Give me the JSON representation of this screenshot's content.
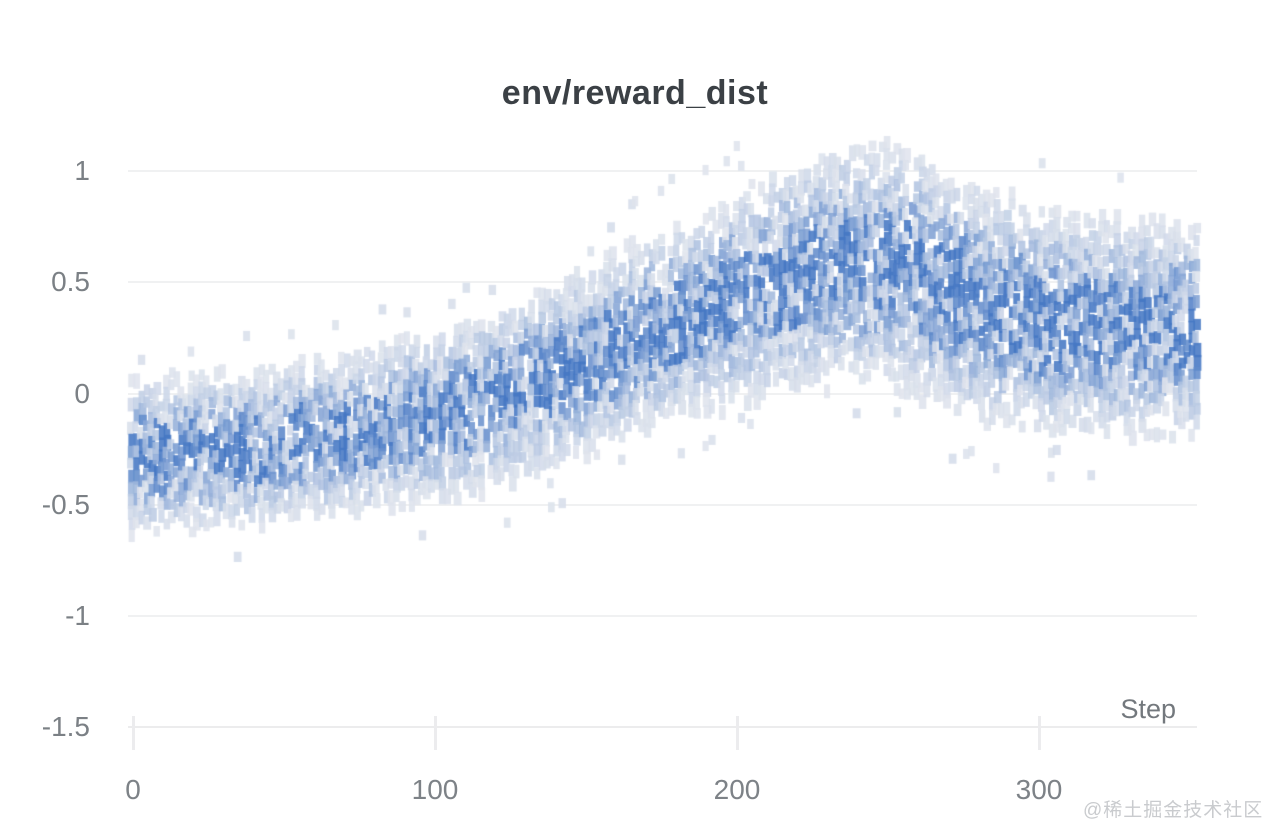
{
  "page": {
    "background": "#ffffff"
  },
  "chart": {
    "title": "env/reward_dist",
    "xlabel": "Step",
    "watermark": "@稀土掘金技术社区"
  },
  "chart_data": {
    "type": "heatmap",
    "title": "env/reward_dist",
    "xlabel": "Step",
    "ylabel": "",
    "x_ticks": [
      0,
      100,
      200,
      300
    ],
    "y_ticks": [
      1,
      0.5,
      0,
      -0.5,
      -1,
      -1.5
    ],
    "xlim": [
      0,
      355
    ],
    "ylim": [
      -1.5,
      1.17
    ],
    "grid": true,
    "legend": "none",
    "colors": {
      "low": "#e9ebf0",
      "high": "#4678c4",
      "grid": "#f0f1f2",
      "label": "#7d8287",
      "title": "#3b4045"
    },
    "value_clip": {
      "min": -0.85,
      "max": 1.17
    },
    "distribution_profile": [
      {
        "step": 0,
        "mean": -0.28,
        "std": 0.16
      },
      {
        "step": 40,
        "mean": -0.24,
        "std": 0.16
      },
      {
        "step": 80,
        "mean": -0.16,
        "std": 0.17
      },
      {
        "step": 110,
        "mean": -0.07,
        "std": 0.18
      },
      {
        "step": 140,
        "mean": 0.08,
        "std": 0.19
      },
      {
        "step": 170,
        "mean": 0.27,
        "std": 0.2
      },
      {
        "step": 195,
        "mean": 0.4,
        "std": 0.21
      },
      {
        "step": 215,
        "mean": 0.5,
        "std": 0.23
      },
      {
        "step": 235,
        "mean": 0.59,
        "std": 0.24
      },
      {
        "step": 255,
        "mean": 0.56,
        "std": 0.25
      },
      {
        "step": 275,
        "mean": 0.44,
        "std": 0.25
      },
      {
        "step": 300,
        "mean": 0.33,
        "std": 0.23
      },
      {
        "step": 330,
        "mean": 0.3,
        "std": 0.22
      },
      {
        "step": 355,
        "mean": 0.28,
        "std": 0.22
      }
    ],
    "description": "Per-step reward distribution density; band centered near -0.3 at step 0, rising steadily after step ~110, peaking near 0.6 around steps 215-255, settling near 0.3 after step 300."
  }
}
